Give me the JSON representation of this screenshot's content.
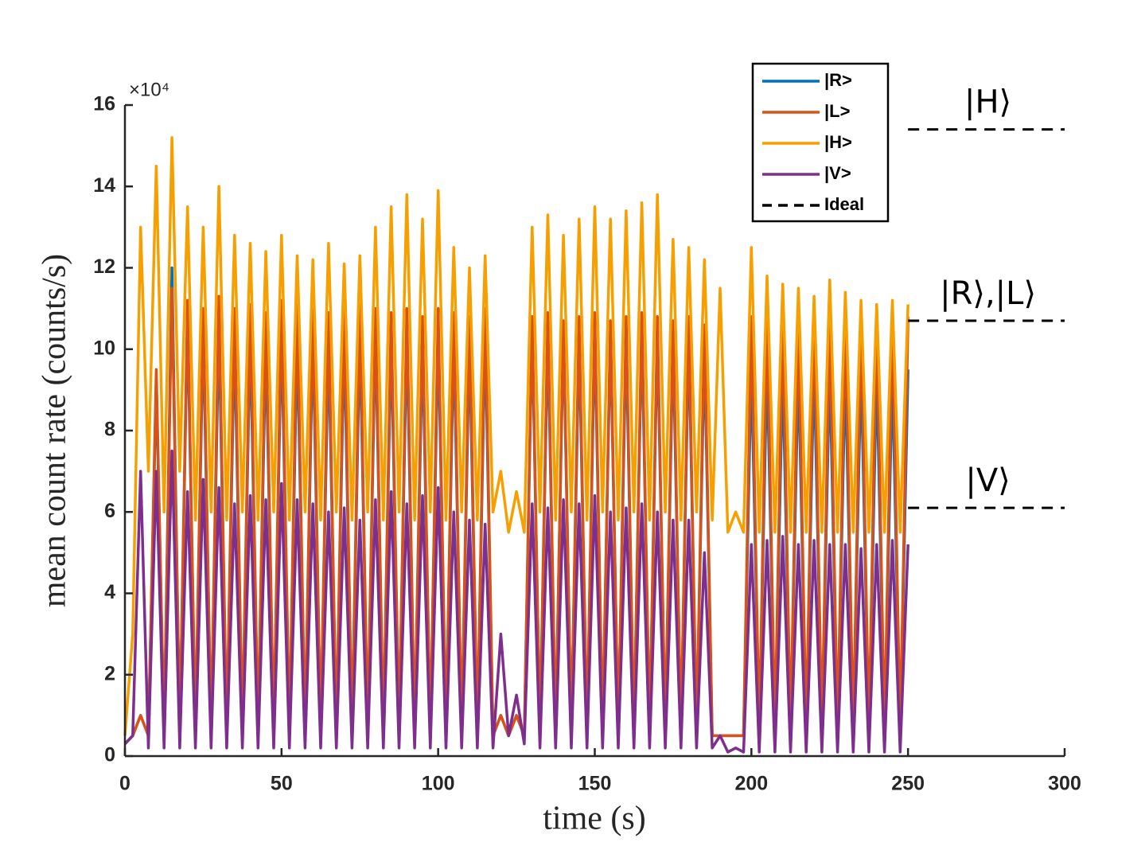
{
  "chart_data": {
    "type": "line",
    "xlabel": "time (s)",
    "ylabel": "mean count rate (counts/s)",
    "y_multiplier": "×10⁴",
    "xlim": [
      0,
      300
    ],
    "xticks": [
      0,
      50,
      100,
      150,
      200,
      250,
      300
    ],
    "ylim": [
      0,
      16
    ],
    "yticks": [
      0,
      2,
      4,
      6,
      8,
      10,
      12,
      14,
      16
    ],
    "grid": false,
    "legend_position": "upper right",
    "x": [
      0,
      2.5,
      5,
      7.5,
      10,
      12.5,
      15,
      17.5,
      20,
      22.5,
      25,
      27.5,
      30,
      32.5,
      35,
      37.5,
      40,
      42.5,
      45,
      47.5,
      50,
      52.5,
      55,
      57.5,
      60,
      62.5,
      65,
      67.5,
      70,
      72.5,
      75,
      77.5,
      80,
      82.5,
      85,
      87.5,
      90,
      92.5,
      95,
      97.5,
      100,
      102.5,
      105,
      107.5,
      110,
      112.5,
      115,
      117.5,
      120,
      122.5,
      125,
      127.5,
      130,
      132.5,
      135,
      137.5,
      140,
      142.5,
      145,
      147.5,
      150,
      152.5,
      155,
      157.5,
      160,
      162.5,
      165,
      167.5,
      170,
      172.5,
      175,
      177.5,
      180,
      182.5,
      185,
      187.5,
      190,
      192.5,
      195,
      197.5,
      200,
      202.5,
      205,
      207.5,
      210,
      212.5,
      215,
      217.5,
      220,
      222.5,
      225,
      227.5,
      230,
      232.5,
      235,
      237.5,
      240,
      242.5,
      245,
      247.5,
      250
    ],
    "series": [
      {
        "name": "|R>",
        "color": "#0072bd",
        "values": [
          0.3,
          0.5,
          1,
          0.5,
          9.2,
          0.5,
          12,
          0.5,
          10.8,
          0.5,
          10.5,
          0.5,
          10.6,
          0.5,
          10.3,
          0.5,
          10.4,
          0.5,
          10.2,
          0.5,
          10.5,
          0.5,
          10.3,
          0.5,
          10.4,
          0.5,
          10.2,
          0.5,
          10.3,
          0.5,
          10.4,
          0.5,
          10.5,
          0.5,
          10.3,
          0.5,
          10.4,
          0.5,
          10.2,
          0.5,
          10.4,
          0.5,
          10.3,
          0.5,
          10.2,
          0.5,
          10.4,
          0.5,
          1,
          0.5,
          1,
          0.5,
          10.5,
          0.5,
          10.4,
          0.5,
          10.5,
          0.5,
          10.3,
          0.5,
          10.5,
          0.5,
          10.4,
          0.5,
          10.3,
          0.5,
          10.5,
          0.5,
          10.4,
          0.5,
          10.2,
          0.5,
          10.3,
          0.5,
          10,
          0.5,
          0.5,
          0.5,
          0.5,
          0.5,
          9.6,
          0.5,
          9.7,
          0.5,
          9.5,
          0.5,
          9.6,
          0.5,
          9.7,
          0.5,
          9.6,
          0.5,
          9.5,
          0.5,
          9.6,
          0.5,
          9.5,
          0.5,
          9.4,
          0.5,
          9.5
        ]
      },
      {
        "name": "|L>",
        "color": "#d95319",
        "values": [
          0.3,
          0.5,
          1,
          0.5,
          9.5,
          0.5,
          11.5,
          0.5,
          11.2,
          0.5,
          11,
          0.5,
          11.3,
          0.5,
          11,
          0.5,
          11.1,
          0.5,
          10.9,
          0.5,
          11.2,
          0.5,
          11.1,
          0.5,
          11,
          0.5,
          10.9,
          0.5,
          11,
          0.5,
          11.1,
          0.5,
          11,
          0.5,
          10.9,
          0.5,
          11,
          0.5,
          10.8,
          0.5,
          11,
          0.5,
          10.9,
          0.5,
          10.8,
          0.5,
          11,
          0.5,
          1,
          0.5,
          1,
          0.5,
          10.8,
          0.5,
          10.9,
          0.5,
          10.7,
          0.5,
          10.8,
          0.5,
          10.9,
          0.5,
          10.7,
          0.5,
          10.8,
          0.5,
          10.9,
          0.5,
          10.8,
          0.5,
          10.7,
          0.5,
          10.8,
          0.5,
          10.6,
          0.5,
          0.5,
          0.5,
          0.5,
          0.5,
          10.8,
          0.5,
          10.9,
          0.5,
          10.8,
          0.5,
          10.7,
          0.5,
          10.9,
          0.5,
          10.8,
          0.5,
          10.7,
          0.5,
          10.8,
          0.5,
          10.9,
          0.5,
          10.8,
          0.5,
          10.8
        ]
      },
      {
        "name": "|H>",
        "color": "#f5a000",
        "values": [
          0.5,
          3,
          13,
          7,
          14.5,
          6,
          15.2,
          7,
          13.5,
          5.8,
          13,
          6,
          14,
          5.8,
          12.8,
          6,
          12.6,
          5.8,
          12.4,
          6,
          12.8,
          5.8,
          12.3,
          6,
          12.2,
          5.8,
          12.6,
          6,
          12.1,
          5.8,
          12.3,
          6,
          13,
          5.8,
          13.5,
          6,
          13.8,
          5.8,
          13.2,
          6,
          13.9,
          5.8,
          12.5,
          6,
          12,
          5.8,
          12.3,
          6,
          7,
          5.5,
          6.5,
          5.5,
          13,
          6,
          13.3,
          5.8,
          12.8,
          6,
          13.2,
          5.8,
          13.5,
          6,
          13.2,
          5.8,
          13.4,
          6,
          13.6,
          5.8,
          13.8,
          6,
          12.7,
          5.8,
          12.5,
          6,
          12.2,
          5.8,
          11.5,
          5.5,
          6,
          5.5,
          12.5,
          5.5,
          11.8,
          5.5,
          11.6,
          5.5,
          11.5,
          5.5,
          11.3,
          5.5,
          11.7,
          5.5,
          11.4,
          5.5,
          11.2,
          5.5,
          11.1,
          5.5,
          11.2,
          5.5,
          11.1
        ]
      },
      {
        "name": "|V>",
        "color": "#7e2f8e",
        "values": [
          0.3,
          0.5,
          7,
          0.2,
          7,
          0.2,
          7.5,
          0.2,
          6.5,
          0.2,
          6.8,
          0.2,
          6.6,
          0.2,
          6.2,
          0.2,
          6.4,
          0.2,
          6.3,
          0.2,
          6.7,
          0.2,
          6.3,
          0.2,
          6.2,
          0.2,
          6,
          0.2,
          6.1,
          0.2,
          5.8,
          0.2,
          6.3,
          0.2,
          6.5,
          0.2,
          6.2,
          0.2,
          6.4,
          0.2,
          6.6,
          0.2,
          6,
          0.2,
          5.8,
          0.2,
          5.7,
          0.2,
          3,
          0.5,
          1.5,
          0.3,
          6.2,
          0.2,
          6.1,
          0.2,
          6.3,
          0.2,
          6.2,
          0.2,
          6.4,
          0.2,
          6,
          0.2,
          6.1,
          0.2,
          6.2,
          0.2,
          6,
          0.2,
          5.8,
          0.2,
          5.8,
          0.2,
          5,
          0.2,
          0.5,
          0.1,
          0.2,
          0.1,
          5.2,
          0.1,
          5.3,
          0.1,
          5.4,
          0.1,
          5.2,
          0.1,
          5.3,
          0.1,
          5.2,
          0.1,
          5.2,
          0.1,
          5.1,
          0.1,
          5.2,
          0.1,
          5.3,
          0.1,
          5.2
        ]
      }
    ],
    "ideal_legend": "Ideal",
    "ideal_color": "#000000",
    "ideal_x": [
      250,
      300
    ],
    "ideal_lines": [
      {
        "label": "|H⟩",
        "value": 15.4
      },
      {
        "label": "|R⟩,|L⟩",
        "value": 10.7
      },
      {
        "label": "|V⟩",
        "value": 6.1
      }
    ]
  }
}
